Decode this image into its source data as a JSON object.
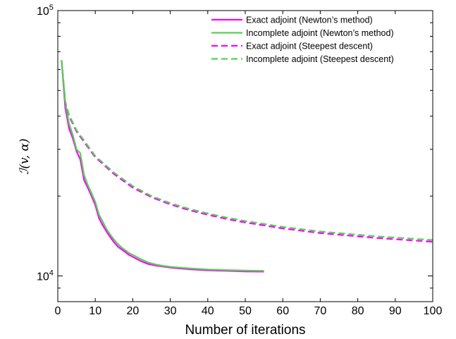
{
  "chart_data": {
    "type": "line",
    "title": "",
    "xlabel": "Number of iterations",
    "ylabel": "ℐ(v, α)",
    "yscale": "log",
    "xlim": [
      0,
      100
    ],
    "ylim": [
      8000,
      100000
    ],
    "x_ticks": [
      0,
      10,
      20,
      30,
      40,
      50,
      60,
      70,
      80,
      90,
      100
    ],
    "y_ticks": [
      {
        "value": 10000,
        "base": "10",
        "exp": "4"
      },
      {
        "value": 100000,
        "base": "10",
        "exp": "5"
      }
    ],
    "grid": false,
    "legend_position": "top-right",
    "colors": {
      "magenta": "#ff00ff",
      "green": "#55d055"
    },
    "series": [
      {
        "name": "Exact adjoint (Newton’s method)",
        "color": "#ff00ff",
        "dash": "solid",
        "x": [
          1,
          2,
          3,
          4,
          5,
          6,
          7,
          8,
          9,
          10,
          11,
          12,
          13,
          14,
          15,
          16,
          17,
          18,
          19,
          20,
          22,
          24,
          26,
          28,
          30,
          35,
          40,
          45,
          50,
          55
        ],
        "y": [
          65000,
          43000,
          36000,
          33000,
          29500,
          27500,
          23000,
          21500,
          20000,
          18500,
          16500,
          15500,
          14700,
          14000,
          13400,
          12900,
          12600,
          12300,
          12000,
          11800,
          11400,
          11100,
          10950,
          10850,
          10750,
          10600,
          10500,
          10450,
          10400,
          10380
        ]
      },
      {
        "name": "Incomplete adjoint (Newton’s method)",
        "color": "#55d055",
        "dash": "solid",
        "x": [
          1,
          2,
          3,
          4,
          5,
          6,
          7,
          8,
          9,
          10,
          11,
          12,
          13,
          14,
          15,
          16,
          17,
          18,
          19,
          20,
          22,
          24,
          26,
          28,
          30,
          35,
          40,
          45,
          50,
          55
        ],
        "y": [
          65000,
          45000,
          37500,
          34000,
          30000,
          29000,
          24000,
          22000,
          20500,
          19000,
          17000,
          16000,
          15000,
          14300,
          13700,
          13200,
          12800,
          12500,
          12200,
          12000,
          11600,
          11250,
          11050,
          10920,
          10820,
          10680,
          10580,
          10520,
          10480,
          10450
        ]
      },
      {
        "name": "Exact adjoint (Steepest descent)",
        "color": "#ff00ff",
        "dash": "dashed",
        "x": [
          1,
          2,
          3,
          5,
          7,
          10,
          15,
          20,
          25,
          30,
          35,
          40,
          45,
          50,
          55,
          60,
          65,
          70,
          75,
          80,
          85,
          90,
          95,
          100
        ],
        "y": [
          65000,
          45000,
          40000,
          35000,
          32000,
          28000,
          24200,
          21500,
          19800,
          18600,
          17700,
          17000,
          16400,
          15900,
          15500,
          15100,
          14800,
          14500,
          14300,
          14100,
          13900,
          13750,
          13600,
          13450
        ]
      },
      {
        "name": "Incomplete adjoint (Steepest descent)",
        "color": "#55d055",
        "dash": "dashed",
        "x": [
          1,
          2,
          3,
          5,
          7,
          10,
          15,
          20,
          25,
          30,
          35,
          40,
          45,
          50,
          55,
          60,
          65,
          70,
          75,
          80,
          85,
          90,
          95,
          100
        ],
        "y": [
          65000,
          45500,
          40500,
          35400,
          32400,
          28300,
          24500,
          21800,
          20000,
          18800,
          17900,
          17200,
          16600,
          16100,
          15700,
          15300,
          15000,
          14700,
          14500,
          14300,
          14100,
          13950,
          13800,
          13650
        ]
      }
    ]
  }
}
